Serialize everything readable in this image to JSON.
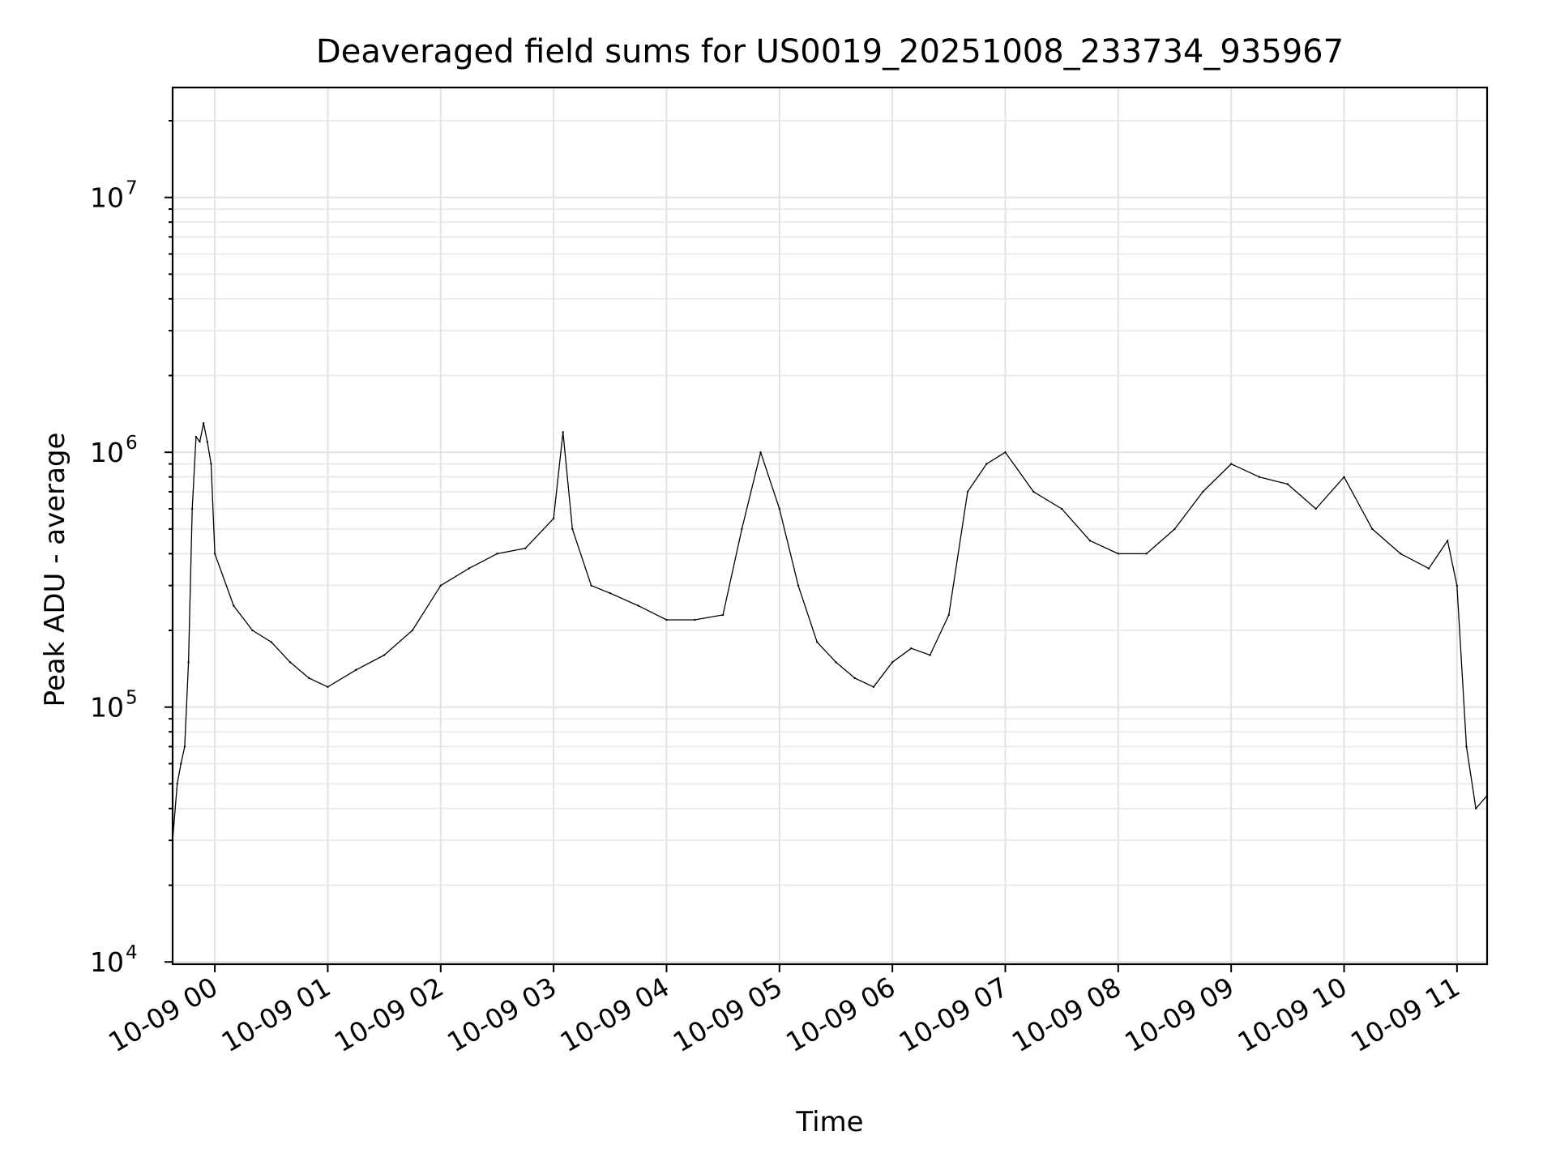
{
  "chart_data": {
    "type": "line",
    "title": "Deaveraged field sums for US0019_20251008_233734_935967",
    "xlabel": "Time",
    "ylabel": "Peak ADU - average",
    "yscale": "log",
    "ylim": [
      9800,
      27000000
    ],
    "xlim": [
      "2025-10-08T23:37:34",
      "2025-10-09T11:16:00"
    ],
    "grid": true,
    "x_ticks": [
      {
        "t": "2025-10-09T00:00",
        "label": "10-09 00"
      },
      {
        "t": "2025-10-09T01:00",
        "label": "10-09 01"
      },
      {
        "t": "2025-10-09T02:00",
        "label": "10-09 02"
      },
      {
        "t": "2025-10-09T03:00",
        "label": "10-09 03"
      },
      {
        "t": "2025-10-09T04:00",
        "label": "10-09 04"
      },
      {
        "t": "2025-10-09T05:00",
        "label": "10-09 05"
      },
      {
        "t": "2025-10-09T06:00",
        "label": "10-09 06"
      },
      {
        "t": "2025-10-09T07:00",
        "label": "10-09 07"
      },
      {
        "t": "2025-10-09T08:00",
        "label": "10-09 08"
      },
      {
        "t": "2025-10-09T09:00",
        "label": "10-09 09"
      },
      {
        "t": "2025-10-09T10:00",
        "label": "10-09 10"
      },
      {
        "t": "2025-10-09T11:00",
        "label": "10-09 11"
      }
    ],
    "y_ticks": [
      {
        "value": 10000,
        "base": "10",
        "exp": "4"
      },
      {
        "value": 100000,
        "base": "10",
        "exp": "5"
      },
      {
        "value": 1000000,
        "base": "10",
        "exp": "6"
      },
      {
        "value": 10000000,
        "base": "10",
        "exp": "7"
      }
    ],
    "line_color": "#000000",
    "series": [
      {
        "x": [
          "2025-10-08T23:37:34",
          "2025-10-08T23:40",
          "2025-10-08T23:42",
          "2025-10-08T23:44",
          "2025-10-08T23:46",
          "2025-10-08T23:48",
          "2025-10-08T23:50",
          "2025-10-08T23:52",
          "2025-10-08T23:54",
          "2025-10-08T23:56",
          "2025-10-08T23:58",
          "2025-10-09T00:00",
          "2025-10-09T00:10",
          "2025-10-09T00:20",
          "2025-10-09T00:30",
          "2025-10-09T00:40",
          "2025-10-09T00:50",
          "2025-10-09T01:00",
          "2025-10-09T01:15",
          "2025-10-09T01:30",
          "2025-10-09T01:45",
          "2025-10-09T02:00",
          "2025-10-09T02:15",
          "2025-10-09T02:30",
          "2025-10-09T02:45",
          "2025-10-09T03:00",
          "2025-10-09T03:05",
          "2025-10-09T03:10",
          "2025-10-09T03:20",
          "2025-10-09T03:30",
          "2025-10-09T03:45",
          "2025-10-09T04:00",
          "2025-10-09T04:15",
          "2025-10-09T04:30",
          "2025-10-09T04:40",
          "2025-10-09T04:50",
          "2025-10-09T05:00",
          "2025-10-09T05:10",
          "2025-10-09T05:20",
          "2025-10-09T05:30",
          "2025-10-09T05:40",
          "2025-10-09T05:50",
          "2025-10-09T06:00",
          "2025-10-09T06:10",
          "2025-10-09T06:20",
          "2025-10-09T06:30",
          "2025-10-09T06:40",
          "2025-10-09T06:50",
          "2025-10-09T07:00",
          "2025-10-09T07:15",
          "2025-10-09T07:30",
          "2025-10-09T07:45",
          "2025-10-09T08:00",
          "2025-10-09T08:15",
          "2025-10-09T08:30",
          "2025-10-09T08:45",
          "2025-10-09T09:00",
          "2025-10-09T09:15",
          "2025-10-09T09:30",
          "2025-10-09T09:45",
          "2025-10-09T10:00",
          "2025-10-09T10:15",
          "2025-10-09T10:30",
          "2025-10-09T10:45",
          "2025-10-09T10:55",
          "2025-10-09T11:00",
          "2025-10-09T11:05",
          "2025-10-09T11:10",
          "2025-10-09T11:16"
        ],
        "y": [
          30000,
          50000,
          60000,
          70000,
          150000,
          600000,
          1150000,
          1100000,
          1300000,
          1100000,
          900000,
          400000,
          250000,
          200000,
          180000,
          150000,
          130000,
          120000,
          140000,
          160000,
          200000,
          300000,
          350000,
          400000,
          420000,
          550000,
          1200000,
          500000,
          300000,
          280000,
          250000,
          220000,
          220000,
          230000,
          500000,
          1000000,
          600000,
          300000,
          180000,
          150000,
          130000,
          120000,
          150000,
          170000,
          160000,
          230000,
          700000,
          900000,
          1000000,
          700000,
          600000,
          450000,
          400000,
          400000,
          500000,
          700000,
          900000,
          800000,
          750000,
          600000,
          800000,
          500000,
          400000,
          350000,
          450000,
          300000,
          70000,
          40000,
          45000
        ]
      }
    ]
  }
}
